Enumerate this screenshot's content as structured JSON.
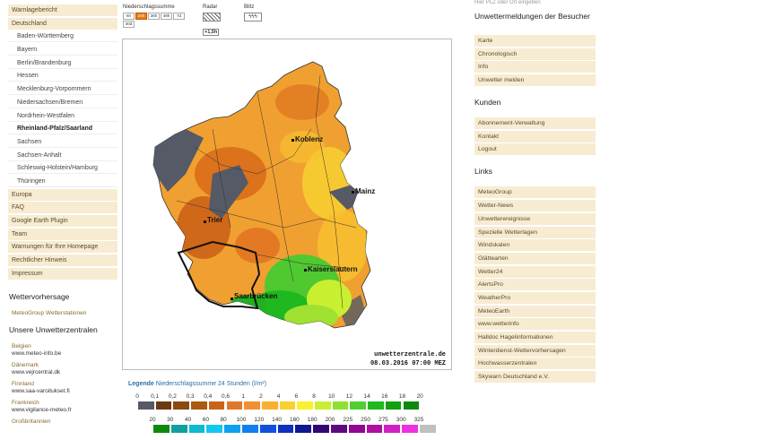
{
  "left_nav": {
    "items": [
      {
        "label": "Warnlagebericht",
        "type": "top"
      },
      {
        "label": "Deutschland",
        "type": "top"
      },
      {
        "label": "Baden-Württemberg",
        "type": "sub"
      },
      {
        "label": "Bayern",
        "type": "sub"
      },
      {
        "label": "Berlin/Brandenburg",
        "type": "sub"
      },
      {
        "label": "Hessen",
        "type": "sub"
      },
      {
        "label": "Mecklenburg-Vorpommern",
        "type": "sub"
      },
      {
        "label": "Niedersachsen/Bremen",
        "type": "sub"
      },
      {
        "label": "Nordrhein-Westfalen",
        "type": "sub"
      },
      {
        "label": "Rheinland-Pfalz/Saarland",
        "type": "sub",
        "active": true
      },
      {
        "label": "Sachsen",
        "type": "sub"
      },
      {
        "label": "Sachsen-Anhalt",
        "type": "sub"
      },
      {
        "label": "Schleswig-Holstein/Hamburg",
        "type": "sub"
      },
      {
        "label": "Thüringen",
        "type": "sub"
      },
      {
        "label": "Europa",
        "type": "top"
      },
      {
        "label": "FAQ",
        "type": "top"
      },
      {
        "label": "Google Earth Plugin",
        "type": "top"
      },
      {
        "label": "Team",
        "type": "top"
      },
      {
        "label": "Warnungen für Ihre Homepage",
        "type": "top"
      },
      {
        "label": "Rechtlicher Hinweis",
        "type": "top"
      },
      {
        "label": "Impressum",
        "type": "top"
      }
    ],
    "wettervorhersage_title": "Wettervorhersage",
    "meteogroup_link": "MeteoGroup Wetterstationen",
    "unwetterzentralen_title": "Unsere Unwetterzentralen",
    "centrals": [
      {
        "country": "Belgien",
        "url": "www.meteo-info.be"
      },
      {
        "country": "Dänemark",
        "url": "www.vejrcentral.dk"
      },
      {
        "country": "Finnland",
        "url": "www.saa-varoitukset.fi"
      },
      {
        "country": "Frankreich",
        "url": "www.vigilance-meteo.fr"
      },
      {
        "country": "Großbritannien",
        "url": ""
      }
    ]
  },
  "controls": {
    "niederschlag_label": "Niederschlagssumme",
    "time_buttons": [
      "6h",
      "24h",
      "36h",
      "48h",
      "7d",
      "30d"
    ],
    "selected": "24h",
    "radar_label": "Radar",
    "radar_sub": "+1,5h",
    "blitz_label": "Blitz",
    "blitz_icon_text": "ϟϟϟ"
  },
  "map": {
    "cities": [
      "Koblenz",
      "Mainz",
      "Trier",
      "Kaiserslautern",
      "Saarbrücken"
    ],
    "credit_site": "unwetterzentrale.de",
    "credit_time": "08.03.2016 07:00 MEZ"
  },
  "legend": {
    "title_bold": "Legende",
    "title_rest": "Niederschlagssumme 24 Stunden",
    "unit": "(l/m²)",
    "row1_labels": [
      "0",
      "0,1",
      "0,2",
      "0,3",
      "0,4",
      "0,6",
      "1",
      "2",
      "4",
      "6",
      "8",
      "10",
      "12",
      "14",
      "16",
      "18",
      "20"
    ],
    "row1_colors": [
      "#555a66",
      "#6b3a10",
      "#8a4a10",
      "#a85a10",
      "#c8641a",
      "#e0782a",
      "#f09030",
      "#f8b030",
      "#f8d030",
      "#f8f030",
      "#c8f030",
      "#90e030",
      "#50d030",
      "#20b820",
      "#10a010",
      "#108810"
    ],
    "row2_labels": [
      "20",
      "30",
      "40",
      "60",
      "80",
      "100",
      "120",
      "140",
      "160",
      "180",
      "200",
      "225",
      "250",
      "275",
      "300",
      "325"
    ],
    "row2_colors": [
      "#108810",
      "#10a0a0",
      "#10b8d0",
      "#10c8f0",
      "#10a0f0",
      "#1080f0",
      "#1050e0",
      "#1030c0",
      "#101890",
      "#300870",
      "#600880",
      "#900890",
      "#b010a0",
      "#d020c0",
      "#f030e0",
      "#c0c0c0"
    ]
  },
  "right": {
    "top_text": "Hier PLZ oder Ort eingeben",
    "besucher_title": "Unwettermeldungen der Besucher",
    "besucher_items": [
      "Karte",
      "Chronologisch",
      "Info",
      "Unwetter melden"
    ],
    "kunden_title": "Kunden",
    "kunden_items": [
      "Abonnement-Verwaltung",
      "Kontakt",
      "Logout"
    ],
    "links_title": "Links",
    "links_items": [
      "MeteoGroup",
      "Wetter-News",
      "Unwetterereignisse",
      "Spezielle Wetterlagen",
      "Windskalen",
      "Glättearten",
      "Wetter24",
      "AlertsPro",
      "WeatherPro",
      "MeteoEarth",
      "www.wetterinfo",
      "Halldoc Hagelinformationen",
      "Winterdienst-Wettervorhersagen",
      "Hochwasserzentralen",
      "Skywarn Deutschland e.V."
    ]
  }
}
